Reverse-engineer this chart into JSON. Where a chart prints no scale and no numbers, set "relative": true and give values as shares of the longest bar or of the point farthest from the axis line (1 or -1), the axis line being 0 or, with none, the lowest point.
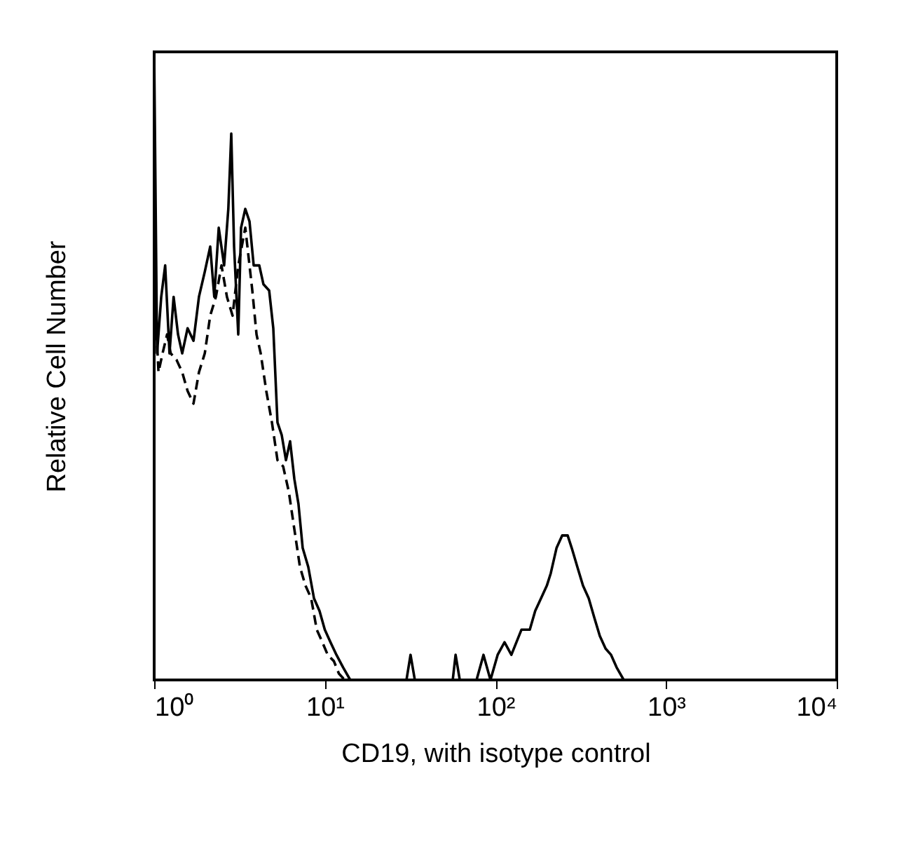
{
  "chart_data": {
    "type": "line",
    "xlabel": "CD19, with isotype control",
    "ylabel": "Relative Cell Number",
    "relative": true,
    "log": "x",
    "xlim": [
      1,
      10000
    ],
    "xticks": [
      {
        "value": 1,
        "label": "10⁰"
      },
      {
        "value": 10,
        "label": "10¹"
      },
      {
        "value": 100,
        "label": "10²"
      },
      {
        "value": 1000,
        "label": "10³"
      },
      {
        "value": 10000,
        "label": "10⁴"
      }
    ],
    "grid": false,
    "marker": "none",
    "series": [
      {
        "color": "#000000",
        "line_style": "solid",
        "x": [
          1,
          1.04,
          1.1,
          1.16,
          1.23,
          1.3,
          1.38,
          1.46,
          1.57,
          1.7,
          1.83,
          1.98,
          2.13,
          2.25,
          2.39,
          2.57,
          2.72,
          2.83,
          2.94,
          3.11,
          3.23,
          3.42,
          3.62,
          3.83,
          4.13,
          4.37,
          4.72,
          4.99,
          5.28,
          5.59,
          5.92,
          6.26,
          6.63,
          7.01,
          7.42,
          8.0,
          8.64,
          9.31,
          10.0,
          10.8,
          11.7,
          12.8,
          14.1,
          17.1,
          30.1,
          31.8,
          33.7,
          44.0,
          56.2,
          58.4,
          61.8,
          77.5,
          85.1,
          93.5,
          103,
          113,
          124,
          142,
          159,
          171,
          185,
          200,
          211,
          228,
          246,
          265,
          280,
          302,
          326,
          352,
          379,
          409,
          442,
          476,
          513,
          565,
          750,
          10000
        ],
        "values": [
          1.0,
          0.52,
          0.61,
          0.66,
          0.52,
          0.61,
          0.55,
          0.52,
          0.56,
          0.54,
          0.61,
          0.65,
          0.69,
          0.61,
          0.72,
          0.66,
          0.75,
          0.87,
          0.69,
          0.55,
          0.72,
          0.75,
          0.73,
          0.66,
          0.66,
          0.63,
          0.62,
          0.56,
          0.41,
          0.39,
          0.35,
          0.38,
          0.32,
          0.28,
          0.21,
          0.18,
          0.13,
          0.11,
          0.08,
          0.06,
          0.04,
          0.02,
          0,
          0,
          0,
          0.04,
          0,
          0,
          0,
          0.04,
          0,
          0,
          0.04,
          0,
          0.04,
          0.06,
          0.04,
          0.08,
          0.08,
          0.11,
          0.13,
          0.15,
          0.17,
          0.21,
          0.23,
          0.23,
          0.21,
          0.18,
          0.15,
          0.13,
          0.1,
          0.07,
          0.05,
          0.04,
          0.02,
          0,
          0,
          0
        ]
      },
      {
        "color": "#000000",
        "line_style": "dashed",
        "x": [
          1,
          1.06,
          1.12,
          1.19,
          1.25,
          1.35,
          1.46,
          1.57,
          1.7,
          1.83,
          1.98,
          2.13,
          2.3,
          2.48,
          2.67,
          2.88,
          3.11,
          3.42,
          3.76,
          3.98,
          4.21,
          4.54,
          4.9,
          5.28,
          5.7,
          6.15,
          6.63,
          7.15,
          7.71,
          8.32,
          8.97,
          9.68,
          10.4,
          11.3,
          12.1,
          13.1,
          10000
        ],
        "values": [
          0.63,
          0.49,
          0.52,
          0.55,
          0.52,
          0.51,
          0.49,
          0.46,
          0.44,
          0.49,
          0.52,
          0.58,
          0.61,
          0.66,
          0.61,
          0.58,
          0.66,
          0.72,
          0.62,
          0.55,
          0.52,
          0.46,
          0.41,
          0.35,
          0.34,
          0.3,
          0.24,
          0.18,
          0.15,
          0.13,
          0.08,
          0.06,
          0.04,
          0.03,
          0.01,
          0,
          0
        ]
      }
    ]
  }
}
